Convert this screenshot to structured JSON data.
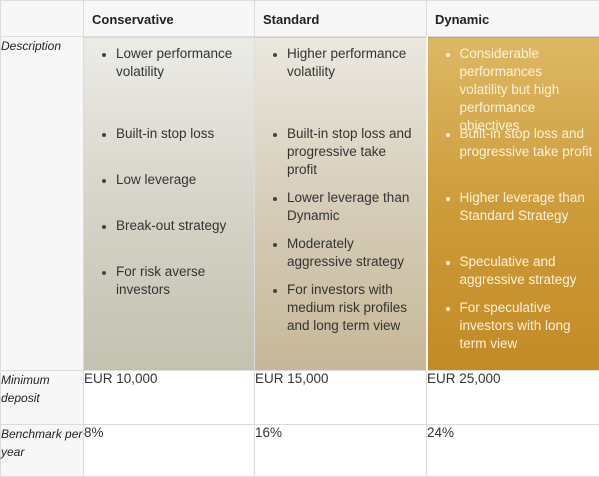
{
  "table": {
    "columns": [
      {
        "key": "conservative",
        "label": "Conservative"
      },
      {
        "key": "standard",
        "label": "Standard"
      },
      {
        "key": "dynamic",
        "label": "Dynamic"
      }
    ],
    "rows": {
      "description": {
        "label": "Description",
        "conservative": [
          "Lower performance volatility",
          "Built-in stop loss",
          "Low leverage",
          "Break-out strategy",
          "For risk averse investors"
        ],
        "standard": [
          "Higher performance volatility",
          "Built-in stop loss and progressive take profit",
          "Lower leverage than Dynamic",
          "Moderately aggressive strategy",
          "For investors with medium risk profiles and long term view"
        ],
        "dynamic": [
          "Considerable performances volatility but high performance objectives",
          "Built-in stop loss and progressive take profit",
          "Higher leverage than Standard Strategy",
          "Speculative and aggressive strategy",
          "For speculative investors with long term view"
        ]
      },
      "minimum_deposit": {
        "label": "Minimum deposit",
        "conservative": "EUR 10,000",
        "standard": "EUR 15,000",
        "dynamic": "EUR 25,000"
      },
      "benchmark": {
        "label": "Benchmark per year",
        "conservative": "8%",
        "standard": "16%",
        "dynamic": "24%"
      }
    }
  },
  "colors": {
    "conservative_fill": "#d4d2c6",
    "standard_fill": "#d6cdb9",
    "dynamic_fill": "#cd9c3a",
    "grid_border": "#dcdcdc"
  }
}
